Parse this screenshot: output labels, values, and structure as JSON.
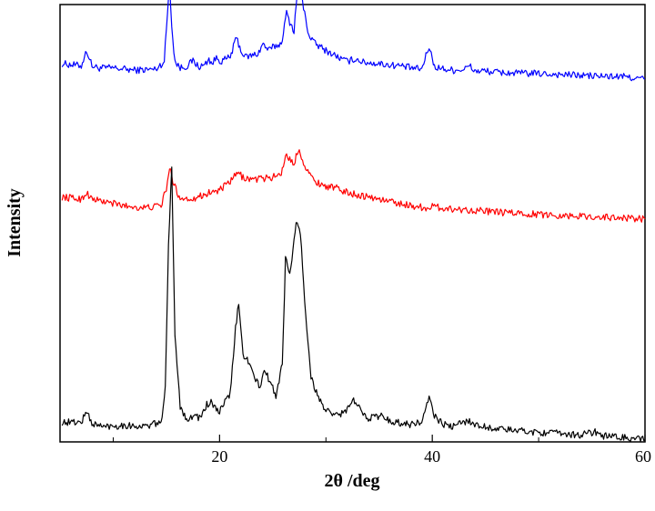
{
  "chart_data": {
    "type": "line",
    "title": "",
    "xlabel": "2θ /deg",
    "ylabel": "Intensity",
    "xlim": [
      5,
      60
    ],
    "ylim": [
      0,
      100
    ],
    "x_ticks": [
      20,
      40,
      60
    ],
    "x_minor_ticks": [
      10,
      30,
      50
    ],
    "y_tick_labels": false,
    "grid": false,
    "legend": "none",
    "series": [
      {
        "color": "#0000ff",
        "x": [
          5.2,
          7.0,
          7.5,
          8.0,
          8.6,
          10,
          12,
          14,
          14.8,
          15.1,
          15.3,
          15.5,
          15.8,
          16.3,
          17.0,
          17.5,
          18.0,
          18.5,
          19.0,
          19.3,
          19.7,
          20.2,
          21.0,
          21.6,
          22.0,
          22.4,
          23.0,
          23.6,
          24.1,
          24.6,
          25.2,
          25.8,
          26.3,
          26.6,
          27.0,
          27.2,
          27.5,
          27.9,
          28.4,
          29.0,
          30.0,
          31.0,
          31.5,
          32.0,
          32.8,
          33.5,
          35.0,
          36.0,
          37.0,
          38.0,
          39.0,
          39.7,
          40.2,
          41.0,
          42.0,
          43.0,
          43.5,
          44.0,
          45.0,
          46.0,
          48.0,
          50.0,
          52.0,
          54.0,
          56.0,
          58.0,
          60.0
        ],
        "y": [
          86.5,
          86.0,
          89.5,
          86.0,
          85.5,
          85.5,
          85.0,
          85.2,
          87.0,
          98.0,
          105.5,
          95.0,
          87.0,
          85.5,
          86.0,
          87.2,
          85.8,
          86.0,
          87.5,
          86.5,
          87.8,
          87.0,
          88.0,
          92.5,
          89.5,
          88.0,
          88.3,
          88.8,
          91.0,
          89.5,
          90.5,
          91.0,
          98.0,
          96.0,
          94.0,
          100.0,
          107.0,
          99.0,
          93.0,
          91.0,
          89.5,
          88.2,
          87.5,
          87.0,
          87.6,
          86.8,
          86.5,
          86.2,
          86.0,
          85.5,
          85.2,
          90.5,
          85.8,
          85.3,
          85.0,
          85.2,
          86.0,
          84.8,
          84.8,
          84.5,
          84.3,
          84.2,
          84.0,
          83.8,
          83.6,
          83.5,
          83.0
        ]
      },
      {
        "color": "#ff0000",
        "x": [
          5.2,
          7.0,
          7.5,
          8.0,
          9.0,
          11.0,
          13.0,
          14.5,
          15.0,
          15.3,
          15.7,
          16.2,
          17.0,
          18.0,
          19.0,
          20.0,
          21.0,
          21.7,
          22.2,
          23.0,
          24.0,
          25.0,
          25.8,
          26.3,
          26.7,
          27.0,
          27.4,
          27.9,
          28.5,
          29.0,
          30.0,
          31.0,
          32.0,
          34.0,
          36.0,
          38.0,
          39.5,
          40.0,
          42.0,
          44.0,
          46.0,
          48.0,
          50.0,
          52.0,
          54.0,
          56.0,
          58.0,
          60.0
        ],
        "y": [
          56.0,
          55.5,
          57.0,
          55.5,
          55.0,
          54.0,
          53.5,
          54.0,
          58.0,
          62.5,
          59.0,
          56.0,
          55.5,
          56.0,
          57.0,
          57.5,
          59.5,
          61.5,
          60.5,
          60.0,
          60.2,
          60.5,
          61.5,
          66.0,
          64.0,
          63.5,
          67.0,
          64.0,
          61.0,
          59.5,
          58.5,
          58.0,
          57.0,
          56.0,
          55.0,
          54.0,
          53.5,
          53.8,
          53.2,
          53.0,
          52.5,
          52.3,
          52.0,
          51.8,
          51.6,
          51.4,
          51.2,
          51.0
        ]
      },
      {
        "color": "#000000",
        "x": [
          5.2,
          7.0,
          7.5,
          8.0,
          9.0,
          11.0,
          13.0,
          14.5,
          14.9,
          15.2,
          15.5,
          15.8,
          16.3,
          17.0,
          17.5,
          18.2,
          18.8,
          19.2,
          19.6,
          20.0,
          21.0,
          21.5,
          21.8,
          22.2,
          22.7,
          23.3,
          23.8,
          24.2,
          24.7,
          25.3,
          25.9,
          26.2,
          26.6,
          27.0,
          27.2,
          27.6,
          28.0,
          28.6,
          29.2,
          29.8,
          30.5,
          31.5,
          32.0,
          32.6,
          33.0,
          34.0,
          35.2,
          35.6,
          36.5,
          38.0,
          39.0,
          39.7,
          40.2,
          41.0,
          42.0,
          43.4,
          44.0,
          45.0,
          46.0,
          48.0,
          50.0,
          52.0,
          54.0,
          55.3,
          56.0,
          58.0,
          60.0
        ],
        "y": [
          4.5,
          4.5,
          7.0,
          4.2,
          3.5,
          3.8,
          3.5,
          4.5,
          12.0,
          45.0,
          62.5,
          25.0,
          8.0,
          5.0,
          6.0,
          5.5,
          8.5,
          9.0,
          7.5,
          7.0,
          11.0,
          26.0,
          31.5,
          20.0,
          18.5,
          14.5,
          12.5,
          16.5,
          14.0,
          10.5,
          18.0,
          42.0,
          38.0,
          46.0,
          50.0,
          48.0,
          32.0,
          15.0,
          10.5,
          8.0,
          6.0,
          6.5,
          7.5,
          9.5,
          8.0,
          5.5,
          6.0,
          5.2,
          4.5,
          4.0,
          4.5,
          10.0,
          6.0,
          4.0,
          3.5,
          5.0,
          3.8,
          3.5,
          3.0,
          2.6,
          2.2,
          1.9,
          1.6,
          2.3,
          1.4,
          1.0,
          0.5
        ]
      }
    ]
  }
}
